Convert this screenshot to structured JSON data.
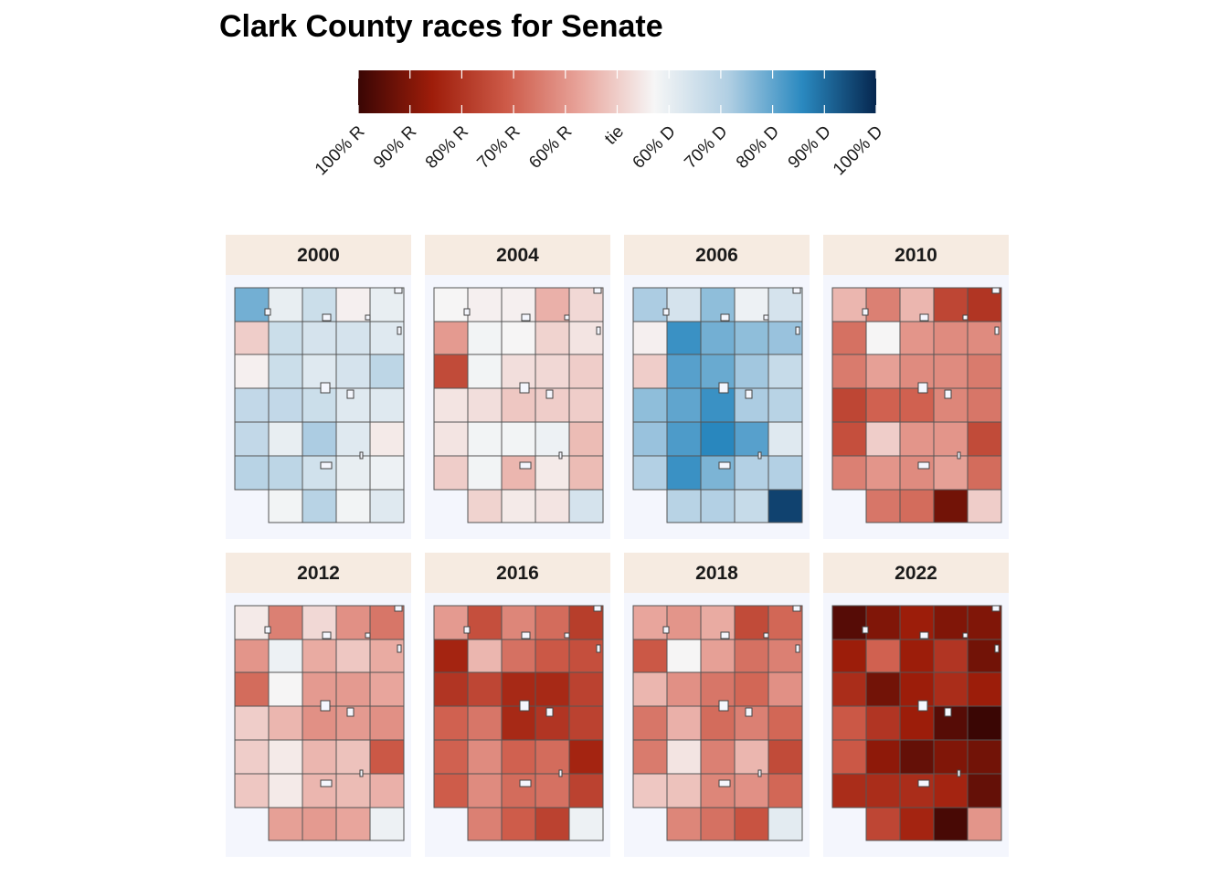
{
  "title": "Clark County races for Senate",
  "legend": {
    "labels": [
      "100% R",
      "90% R",
      "80% R",
      "70% R",
      "60% R",
      "tie",
      "60% D",
      "70% D",
      "80% D",
      "90% D",
      "100% D"
    ],
    "colors": [
      "#3a0604",
      "#9e1d0a",
      "#cd5a48",
      "#e8a49b",
      "#f6f6f6",
      "#b1cfe3",
      "#2a89c0",
      "#06274f"
    ]
  },
  "panels": [
    {
      "year": "2000",
      "margins": [
        [
          0.28,
          0.1,
          0.16,
          0.06,
          0.1
        ],
        [
          0.0,
          0.16,
          0.14,
          0.14,
          0.12
        ],
        [
          0.06,
          0.16,
          0.12,
          0.14,
          0.19
        ],
        [
          0.18,
          0.18,
          0.16,
          0.12,
          0.12
        ],
        [
          0.18,
          0.1,
          0.22,
          0.12,
          0.05
        ],
        [
          0.2,
          0.19,
          0.15,
          0.1,
          0.09
        ],
        [
          null,
          0.08,
          0.2,
          0.08,
          0.12
        ]
      ]
    },
    {
      "year": "2004",
      "margins": [
        [
          0.07,
          0.06,
          0.06,
          -0.05,
          0.02
        ],
        [
          -0.09,
          0.08,
          0.07,
          0.01,
          0.04
        ],
        [
          -0.25,
          0.08,
          0.03,
          0.02,
          0.0
        ],
        [
          0.04,
          0.03,
          -0.01,
          0.0,
          0.0
        ],
        [
          0.04,
          0.08,
          0.08,
          0.09,
          -0.03
        ],
        [
          0.0,
          0.08,
          -0.04,
          0.05,
          -0.03
        ],
        [
          null,
          0.01,
          0.05,
          0.04,
          0.14
        ]
      ]
    },
    {
      "year": "2006",
      "margins": [
        [
          0.22,
          0.14,
          0.25,
          0.09,
          0.14
        ],
        [
          0.06,
          0.34,
          0.28,
          0.25,
          0.24
        ],
        [
          0.0,
          0.31,
          0.29,
          0.23,
          0.17
        ],
        [
          0.25,
          0.3,
          0.34,
          0.22,
          0.2
        ],
        [
          0.24,
          0.32,
          0.36,
          0.31,
          0.12
        ],
        [
          0.21,
          0.34,
          0.27,
          0.21,
          0.21
        ],
        [
          null,
          0.2,
          0.21,
          0.17,
          0.46
        ]
      ]
    },
    {
      "year": "2010",
      "margins": [
        [
          -0.04,
          -0.14,
          -0.04,
          -0.26,
          -0.3
        ],
        [
          -0.17,
          0.07,
          -0.1,
          -0.12,
          -0.12
        ],
        [
          -0.15,
          -0.08,
          -0.12,
          -0.12,
          -0.15
        ],
        [
          -0.26,
          -0.2,
          -0.2,
          -0.13,
          -0.16
        ],
        [
          -0.24,
          0.0,
          -0.1,
          -0.1,
          -0.25
        ],
        [
          -0.14,
          -0.1,
          -0.12,
          -0.08,
          -0.18
        ],
        [
          null,
          -0.16,
          -0.18,
          -0.42,
          0.0
        ]
      ]
    },
    {
      "year": "2012",
      "margins": [
        [
          0.05,
          -0.14,
          0.02,
          -0.11,
          -0.16
        ],
        [
          -0.1,
          0.09,
          -0.06,
          -0.01,
          -0.06
        ],
        [
          -0.18,
          0.07,
          -0.09,
          -0.09,
          -0.07
        ],
        [
          0.0,
          -0.04,
          -0.11,
          -0.09,
          -0.11
        ],
        [
          0.0,
          0.05,
          -0.04,
          -0.02,
          -0.22
        ],
        [
          -0.01,
          0.05,
          -0.04,
          -0.03,
          -0.05
        ],
        [
          null,
          -0.08,
          -0.09,
          -0.07,
          0.09
        ]
      ]
    },
    {
      "year": "2016",
      "margins": [
        [
          -0.09,
          -0.24,
          -0.13,
          -0.18,
          -0.28
        ],
        [
          -0.34,
          -0.04,
          -0.17,
          -0.22,
          -0.24
        ],
        [
          -0.3,
          -0.26,
          -0.33,
          -0.33,
          -0.27
        ],
        [
          -0.2,
          -0.16,
          -0.33,
          -0.3,
          -0.27
        ],
        [
          -0.2,
          -0.12,
          -0.2,
          -0.18,
          -0.34
        ],
        [
          -0.21,
          -0.12,
          -0.18,
          -0.17,
          -0.27
        ],
        [
          null,
          -0.14,
          -0.21,
          -0.27,
          0.09
        ]
      ]
    },
    {
      "year": "2018",
      "margins": [
        [
          -0.07,
          -0.1,
          -0.06,
          -0.25,
          -0.19
        ],
        [
          -0.22,
          0.07,
          -0.08,
          -0.17,
          -0.14
        ],
        [
          -0.04,
          -0.11,
          -0.16,
          -0.19,
          -0.11
        ],
        [
          -0.16,
          -0.05,
          -0.18,
          -0.14,
          -0.19
        ],
        [
          -0.15,
          0.04,
          -0.14,
          -0.04,
          -0.25
        ],
        [
          -0.01,
          -0.02,
          -0.13,
          -0.11,
          -0.19
        ],
        [
          null,
          -0.13,
          -0.17,
          -0.23,
          0.11
        ]
      ]
    },
    {
      "year": "2022",
      "margins": [
        [
          -0.46,
          -0.4,
          -0.36,
          -0.4,
          -0.4
        ],
        [
          -0.36,
          -0.2,
          -0.36,
          -0.3,
          -0.42
        ],
        [
          -0.32,
          -0.42,
          -0.36,
          -0.32,
          -0.36
        ],
        [
          -0.22,
          -0.3,
          -0.36,
          -0.46,
          -0.5
        ],
        [
          -0.22,
          -0.38,
          -0.44,
          -0.4,
          -0.42
        ],
        [
          -0.32,
          -0.32,
          -0.32,
          -0.34,
          -0.44
        ],
        [
          null,
          -0.26,
          -0.34,
          -0.48,
          -0.1
        ]
      ]
    }
  ]
}
